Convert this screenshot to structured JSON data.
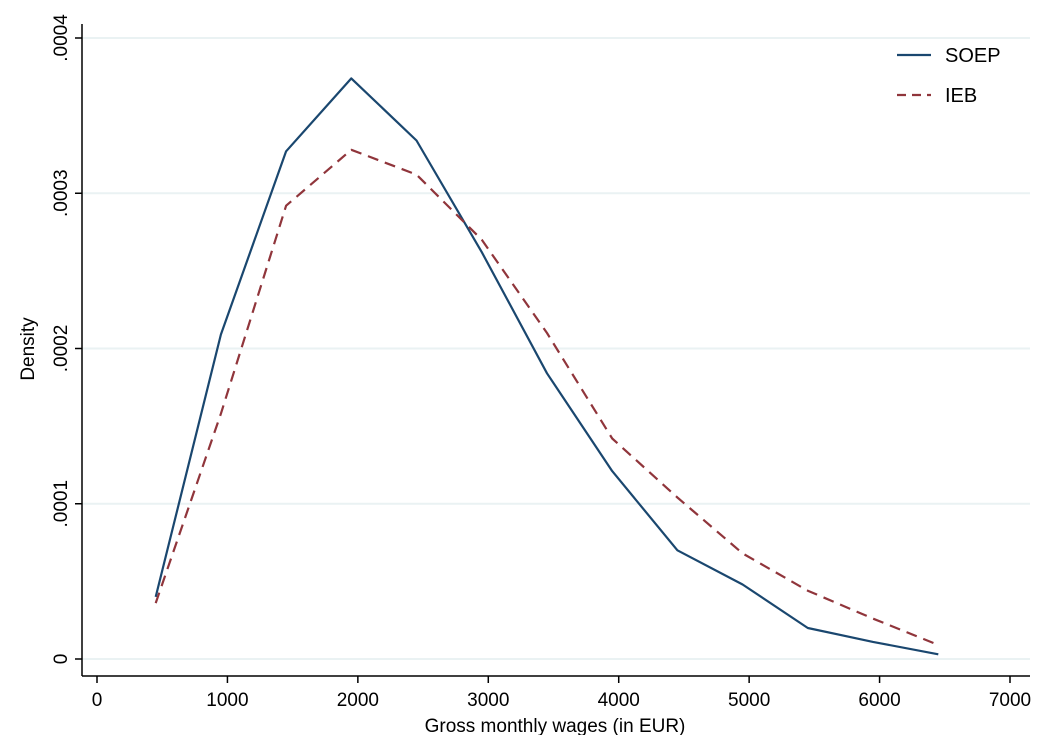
{
  "chart_data": {
    "type": "line",
    "title": "",
    "xlabel": "Gross monthly wages (in EUR)",
    "ylabel": "Density",
    "xlim": [
      0,
      7000
    ],
    "ylim": [
      0,
      0.0004
    ],
    "xticks": [
      0,
      1000,
      2000,
      3000,
      4000,
      5000,
      6000,
      7000
    ],
    "xtick_labels": [
      "0",
      "1000",
      "2000",
      "3000",
      "4000",
      "5000",
      "6000",
      "7000"
    ],
    "yticks": [
      0,
      0.0001,
      0.0002,
      0.0003,
      0.0004
    ],
    "ytick_labels": [
      "0",
      ".0001",
      ".0002",
      ".0003",
      ".0004"
    ],
    "grid": "horizontal",
    "legend_position": "top-right",
    "series": [
      {
        "name": "SOEP",
        "color": "#1a476f",
        "style": "solid",
        "x": [
          450,
          950,
          1450,
          1950,
          2450,
          2950,
          3450,
          3950,
          4450,
          4950,
          5450,
          5950,
          6450
        ],
        "y": [
          4e-05,
          0.000209,
          0.000327,
          0.000374,
          0.000334,
          0.000262,
          0.000184,
          0.000121,
          7e-05,
          4.8e-05,
          2e-05,
          1.1e-05,
          3e-06
        ]
      },
      {
        "name": "IEB",
        "color": "#90353b",
        "style": "dashed",
        "x": [
          450,
          950,
          1450,
          1950,
          2450,
          2950,
          3450,
          3950,
          4450,
          4950,
          5450,
          5950,
          6450
        ],
        "y": [
          3.6e-05,
          0.000158,
          0.000292,
          0.000328,
          0.000312,
          0.00027,
          0.00021,
          0.000142,
          0.000104,
          6.8e-05,
          4.4e-05,
          2.6e-05,
          9e-06
        ]
      }
    ]
  }
}
